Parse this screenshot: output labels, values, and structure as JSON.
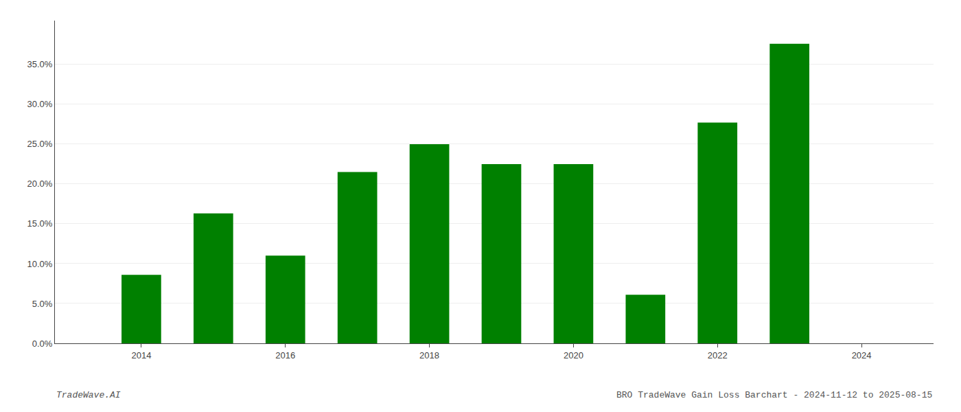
{
  "chart_data": {
    "type": "bar",
    "x": [
      2014,
      2015,
      2016,
      2017,
      2018,
      2019,
      2020,
      2021,
      2022,
      2023
    ],
    "values": [
      0.086,
      0.163,
      0.11,
      0.215,
      0.25,
      0.225,
      0.225,
      0.061,
      0.277,
      0.376
    ],
    "color": "#008000",
    "xlim": [
      2012.8,
      2025.0
    ],
    "xticks": [
      2014,
      2016,
      2018,
      2020,
      2022,
      2024
    ],
    "ylim": [
      0,
      0.405
    ],
    "yticks": [
      {
        "value": 0.0,
        "label": "0.0%"
      },
      {
        "value": 0.05,
        "label": "5.0%"
      },
      {
        "value": 0.1,
        "label": "10.0%"
      },
      {
        "value": 0.15,
        "label": "15.0%"
      },
      {
        "value": 0.2,
        "label": "20.0%"
      },
      {
        "value": 0.25,
        "label": "25.0%"
      },
      {
        "value": 0.3,
        "label": "30.0%"
      },
      {
        "value": 0.35,
        "label": "35.0%"
      }
    ],
    "grid": true,
    "annotations": [
      "TradeWave.AI",
      "BRO TradeWave Gain Loss Barchart - 2024-11-12 to 2025-08-15"
    ]
  }
}
